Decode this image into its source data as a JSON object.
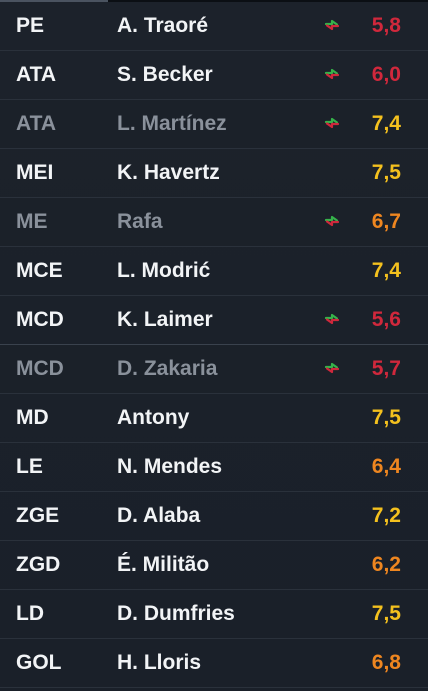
{
  "colors": {
    "rating_red": "#d0283c",
    "rating_yellow": "#f4c11e",
    "rating_orange": "#ee8620",
    "swap_green": "#35b34a",
    "swap_red": "#d0283c"
  },
  "players": [
    {
      "position": "PE",
      "name": "A. Traoré",
      "rating": "5,8",
      "rating_level": "red",
      "sub_off": false,
      "sub_on": false,
      "swap_icon": true
    },
    {
      "position": "ATA",
      "name": "S. Becker",
      "rating": "6,0",
      "rating_level": "red",
      "sub_off": false,
      "sub_on": false,
      "swap_icon": true
    },
    {
      "position": "ATA",
      "name": "L. Martínez",
      "rating": "7,4",
      "rating_level": "yellow",
      "sub_off": true,
      "sub_on": false,
      "swap_icon": true
    },
    {
      "position": "MEI",
      "name": "K. Havertz",
      "rating": "7,5",
      "rating_level": "yellow",
      "sub_off": false,
      "sub_on": false,
      "swap_icon": false
    },
    {
      "position": "ME",
      "name": "Rafa",
      "rating": "6,7",
      "rating_level": "orange",
      "sub_off": true,
      "sub_on": false,
      "swap_icon": true
    },
    {
      "position": "MCE",
      "name": "L. Modrić",
      "rating": "7,4",
      "rating_level": "yellow",
      "sub_off": false,
      "sub_on": false,
      "swap_icon": false
    },
    {
      "position": "MCD",
      "name": "K. Laimer",
      "rating": "5,6",
      "rating_level": "red",
      "sub_off": false,
      "sub_on": false,
      "swap_icon": true
    },
    {
      "position": "MCD",
      "name": "D. Zakaria",
      "rating": "5,7",
      "rating_level": "red",
      "sub_off": true,
      "sub_on": false,
      "swap_icon": true
    },
    {
      "position": "MD",
      "name": "Antony",
      "rating": "7,5",
      "rating_level": "yellow",
      "sub_off": false,
      "sub_on": false,
      "swap_icon": false
    },
    {
      "position": "LE",
      "name": "N. Mendes",
      "rating": "6,4",
      "rating_level": "orange",
      "sub_off": false,
      "sub_on": false,
      "swap_icon": false
    },
    {
      "position": "ZGE",
      "name": "D. Alaba",
      "rating": "7,2",
      "rating_level": "yellow",
      "sub_off": false,
      "sub_on": false,
      "swap_icon": false
    },
    {
      "position": "ZGD",
      "name": "É. Militão",
      "rating": "6,2",
      "rating_level": "orange",
      "sub_off": false,
      "sub_on": false,
      "swap_icon": false
    },
    {
      "position": "LD",
      "name": "D. Dumfries",
      "rating": "7,5",
      "rating_level": "yellow",
      "sub_off": false,
      "sub_on": false,
      "swap_icon": false
    },
    {
      "position": "GOL",
      "name": "H. Lloris",
      "rating": "6,8",
      "rating_level": "orange",
      "sub_off": false,
      "sub_on": false,
      "swap_icon": false
    }
  ]
}
